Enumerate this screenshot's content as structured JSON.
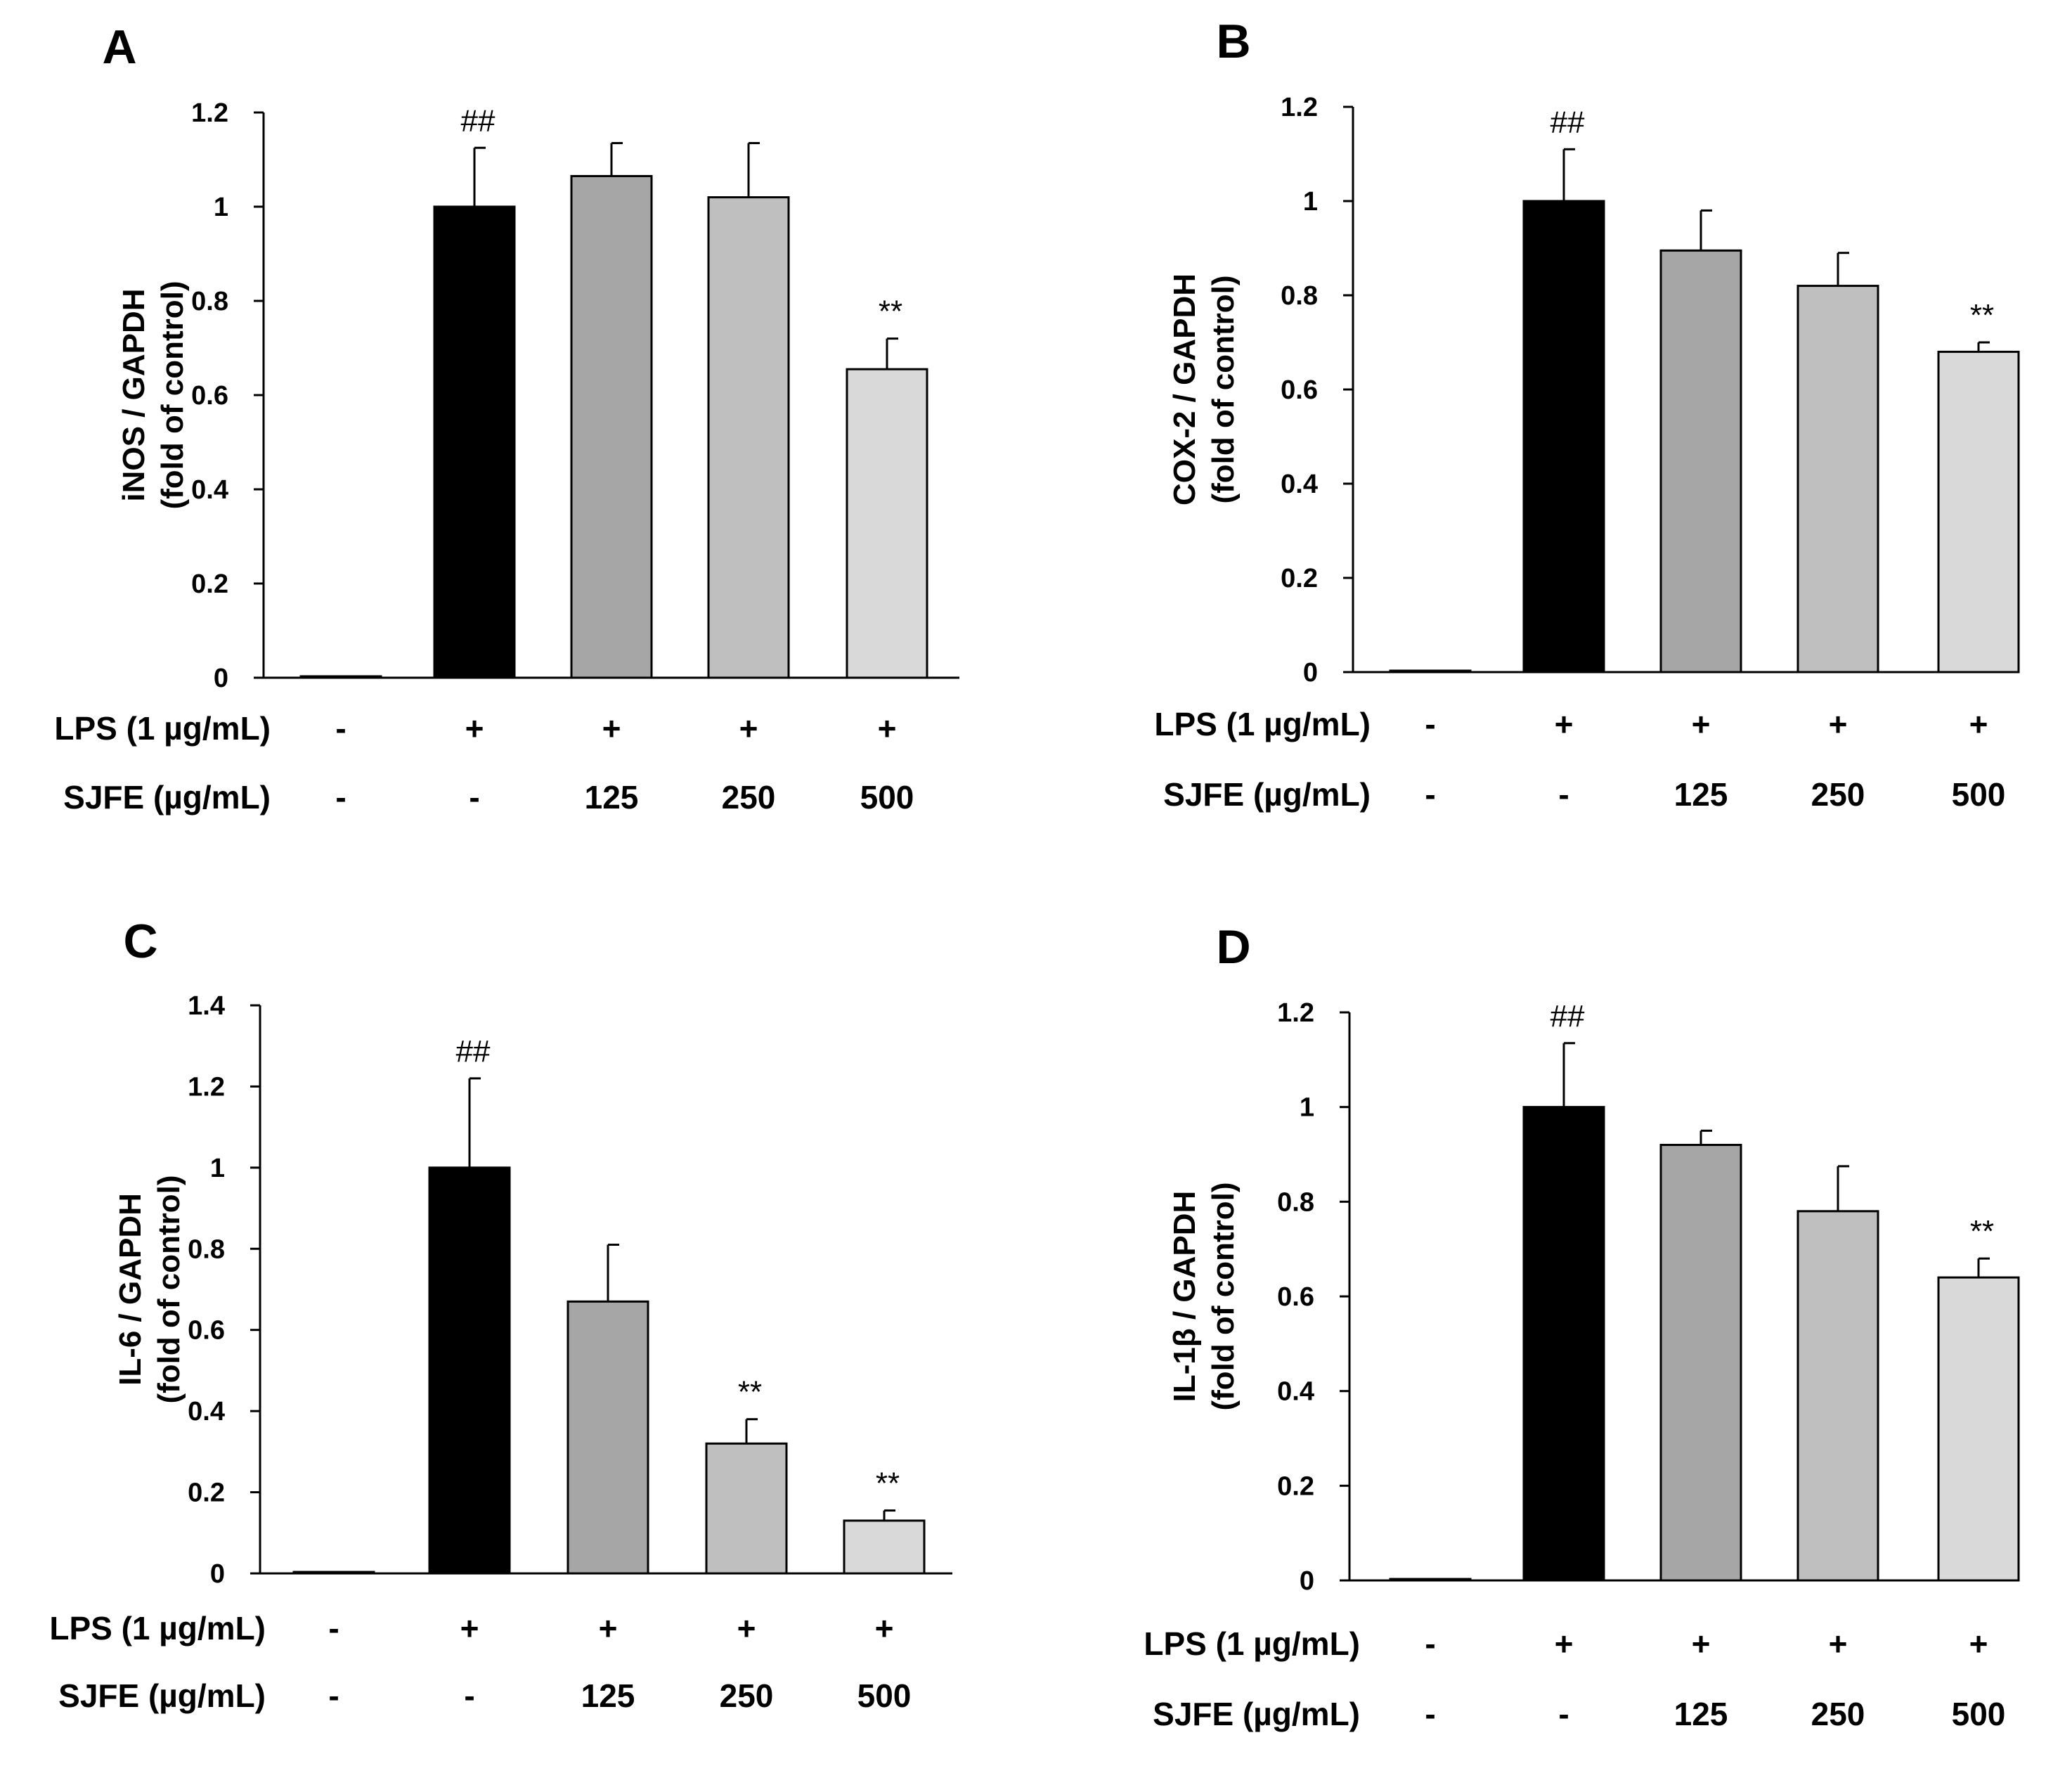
{
  "figure": {
    "treatment_rows": {
      "lps_label": "LPS (1 µg/mL)",
      "sjfe_label": "SJFE (µg/mL)",
      "lps_values": [
        "-",
        "+",
        "+",
        "+",
        "+"
      ],
      "sjfe_values": [
        "-",
        "-",
        "125",
        "250",
        "500"
      ]
    },
    "colors": {
      "bars": [
        "#ffffff",
        "#000000",
        "#a6a6a6",
        "#bfbfbf",
        "#d9d9d9"
      ],
      "outline": "#000000"
    }
  },
  "chart_data": [
    {
      "panel": "A",
      "type": "bar",
      "title": "",
      "ylabel_line1": "iNOS / GAPDH",
      "ylabel_line2": "(fold of control)",
      "categories": [
        "control",
        "LPS",
        "LPS+SJFE 125",
        "LPS+SJFE 250",
        "LPS+SJFE 500"
      ],
      "values": [
        0,
        1.0,
        1.065,
        1.02,
        0.655
      ],
      "errors": [
        0,
        0.125,
        0.07,
        0.115,
        0.065
      ],
      "annotations": [
        "",
        "##",
        "",
        "",
        "**"
      ],
      "ylim": [
        0,
        1.2
      ],
      "yticks": [
        0,
        0.2,
        0.4,
        0.6,
        0.8,
        1,
        1.2
      ],
      "ytick_labels": [
        "0",
        "0.2",
        "0.4",
        "0.6",
        "0.8",
        "1",
        "1.2"
      ]
    },
    {
      "panel": "B",
      "type": "bar",
      "title": "",
      "ylabel_line1": "COX-2 / GAPDH",
      "ylabel_line2": "(fold of control)",
      "categories": [
        "control",
        "LPS",
        "LPS+SJFE 125",
        "LPS+SJFE 250",
        "LPS+SJFE 500"
      ],
      "values": [
        0,
        1.0,
        0.895,
        0.82,
        0.68
      ],
      "errors": [
        0,
        0.11,
        0.085,
        0.07,
        0.02
      ],
      "annotations": [
        "",
        "##",
        "",
        "",
        "**"
      ],
      "ylim": [
        0,
        1.2
      ],
      "yticks": [
        0,
        0.2,
        0.4,
        0.6,
        0.8,
        1,
        1.2
      ],
      "ytick_labels": [
        "0",
        "0.2",
        "0.4",
        "0.6",
        "0.8",
        "1",
        "1.2"
      ]
    },
    {
      "panel": "C",
      "type": "bar",
      "title": "",
      "ylabel_line1": "IL-6 / GAPDH",
      "ylabel_line2": "(fold of control)",
      "categories": [
        "control",
        "LPS",
        "LPS+SJFE 125",
        "LPS+SJFE 250",
        "LPS+SJFE 500"
      ],
      "values": [
        0,
        1.0,
        0.67,
        0.32,
        0.13
      ],
      "errors": [
        0,
        0.22,
        0.14,
        0.06,
        0.025
      ],
      "annotations": [
        "",
        "##",
        "",
        "**",
        "**"
      ],
      "ylim": [
        0,
        1.4
      ],
      "yticks": [
        0,
        0.2,
        0.4,
        0.6,
        0.8,
        1,
        1.2,
        1.4
      ],
      "ytick_labels": [
        "0",
        "0.2",
        "0.4",
        "0.6",
        "0.8",
        "1",
        "1.2",
        "1.4"
      ]
    },
    {
      "panel": "D",
      "type": "bar",
      "title": "",
      "ylabel_line1": "IL-1β / GAPDH",
      "ylabel_line2": "(fold of control)",
      "categories": [
        "control",
        "LPS",
        "LPS+SJFE 125",
        "LPS+SJFE 250",
        "LPS+SJFE 500"
      ],
      "values": [
        0,
        1.0,
        0.92,
        0.78,
        0.64
      ],
      "errors": [
        0,
        0.135,
        0.03,
        0.095,
        0.04
      ],
      "annotations": [
        "",
        "##",
        "",
        "",
        "**"
      ],
      "ylim": [
        0,
        1.2
      ],
      "yticks": [
        0,
        0.2,
        0.4,
        0.6,
        0.8,
        1,
        1.2
      ],
      "ytick_labels": [
        "0",
        "0.2",
        "0.4",
        "0.6",
        "0.8",
        "1",
        "1.2"
      ]
    }
  ]
}
